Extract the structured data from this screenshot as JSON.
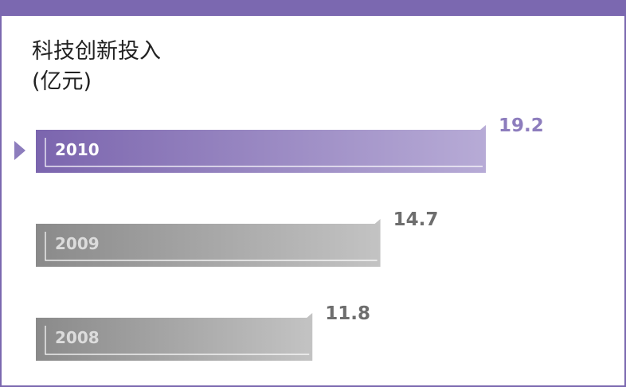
{
  "title": "科技创新投入",
  "unit": "(亿元)",
  "colors": {
    "frame": "#7b68b0",
    "highlight_dark": "#7b65ae",
    "highlight_light": "#b7abd6",
    "highlight_text": "#8d7dbd",
    "gray_dark": "#8a8a8a",
    "gray_light": "#c3c3c3",
    "gray_text": "#6e6e6e",
    "gray_year_text": "#dcdcdc"
  },
  "chart_data": {
    "type": "bar",
    "orientation": "horizontal",
    "title": "科技创新投入",
    "unit": "(亿元)",
    "categories": [
      "2010",
      "2009",
      "2008"
    ],
    "values": [
      19.2,
      14.7,
      11.8
    ],
    "value_labels": [
      "19.2",
      "14.7",
      "11.8"
    ],
    "highlighted": "2010",
    "xlim": [
      0,
      19.2
    ]
  }
}
